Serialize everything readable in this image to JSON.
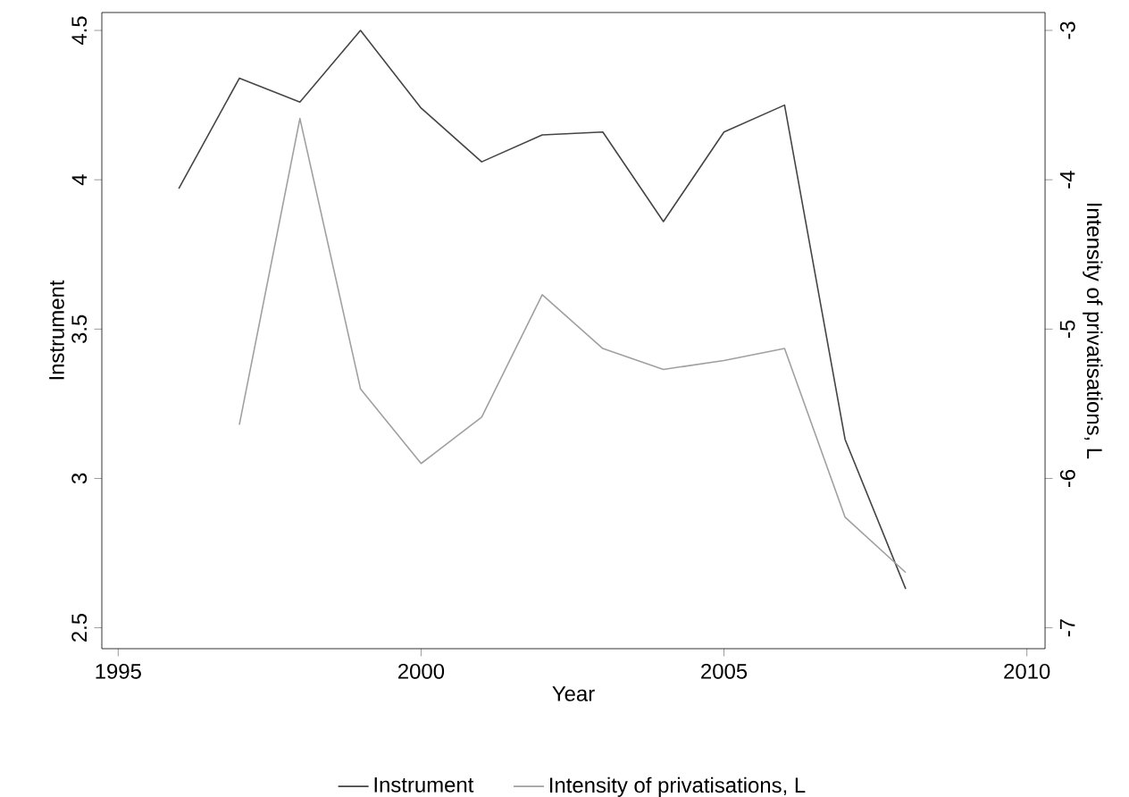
{
  "chart_data": {
    "type": "line",
    "xlabel": "Year",
    "ylabel": "Instrument",
    "y2label": "Intensity of privatisations, L",
    "x": [
      1996,
      1997,
      1998,
      1999,
      2000,
      2001,
      2002,
      2003,
      2004,
      2005,
      2006,
      2007,
      2008
    ],
    "series": [
      {
        "name": "Instrument",
        "color": "#454545",
        "values": [
          3.97,
          4.34,
          4.26,
          4.5,
          4.24,
          4.06,
          4.15,
          4.16,
          3.86,
          4.16,
          4.25,
          3.13,
          2.63
        ]
      },
      {
        "name": "Intensity of privatisations, L",
        "color": "#a0a0a0",
        "axis": "y2",
        "values": [
          null,
          -5.64,
          -3.59,
          -5.4,
          -5.9,
          -5.59,
          -4.77,
          -5.13,
          -5.27,
          -5.21,
          -5.13,
          -6.26,
          -6.63
        ]
      }
    ],
    "xlim": [
      1994.73,
      2010.3
    ],
    "xticks": [
      1995,
      2000,
      2005,
      2010
    ],
    "ylim": [
      2.43,
      4.56
    ],
    "yticks": [
      2.5,
      3,
      3.5,
      4,
      4.5
    ],
    "y2lim": [
      -7.14,
      -2.88
    ],
    "y2ticks": [
      -7,
      -6,
      -5,
      -4,
      -3
    ],
    "grid": false,
    "legend": "bottom",
    "marker": "none",
    "line_style": "solid"
  }
}
